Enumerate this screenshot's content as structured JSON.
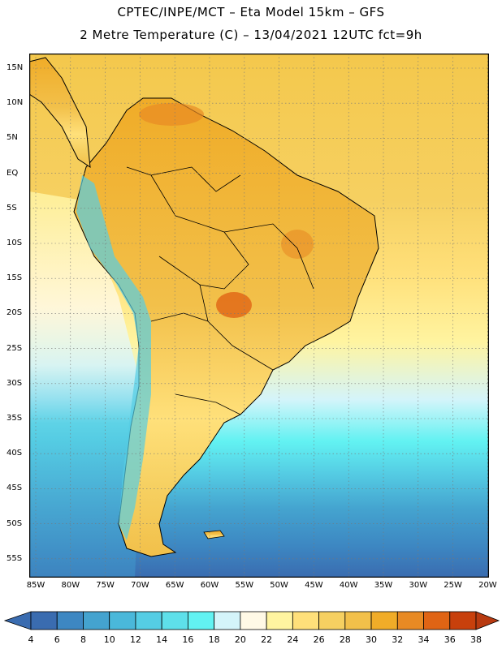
{
  "header": {
    "line1": "CPTEC/INPE/MCT –  Eta Model 15km – GFS",
    "line2": "2 Metre Temperature (C) – 13/04/2021 12UTC fct=9h"
  },
  "map": {
    "lat_labels": [
      "15N",
      "10N",
      "5N",
      "EQ",
      "5S",
      "10S",
      "15S",
      "20S",
      "25S",
      "30S",
      "35S",
      "40S",
      "45S",
      "50S",
      "55S"
    ],
    "lon_labels": [
      "85W",
      "80W",
      "75W",
      "70W",
      "65W",
      "60W",
      "55W",
      "50W",
      "45W",
      "40W",
      "35W",
      "30W",
      "25W",
      "20W"
    ]
  },
  "colorbar": {
    "values": [
      "4",
      "6",
      "8",
      "10",
      "12",
      "14",
      "16",
      "18",
      "20",
      "22",
      "24",
      "26",
      "28",
      "30",
      "32",
      "34",
      "36",
      "38"
    ],
    "low_arrow_color": "#3a6cb0",
    "high_arrow_color": "#b83a10",
    "colors": [
      "#3a6cb0",
      "#3d87c2",
      "#44a3cf",
      "#4ab8da",
      "#55cde4",
      "#5ee0ea",
      "#62f2f2",
      "#d4f4fa",
      "#fff9e6",
      "#fff4a0",
      "#ffe07a",
      "#f6d061",
      "#f2c04a",
      "#f0ac28",
      "#e88a24",
      "#e06414",
      "#c8400c"
    ]
  }
}
